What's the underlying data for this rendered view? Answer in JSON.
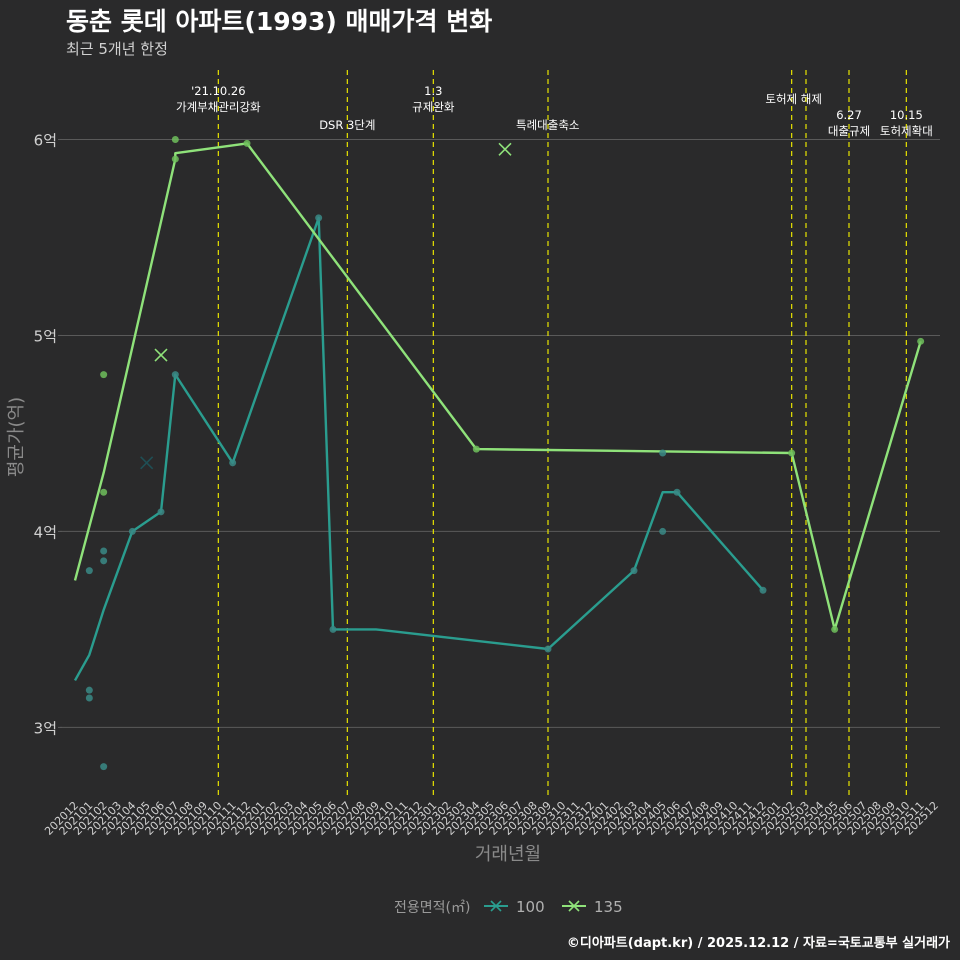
{
  "title": "동춘 롯데 아파트(1993) 매매가격 변화",
  "subtitle": "최근 5개년 한정",
  "caption": "©디아파트(dapt.kr) / 2025.12.12 / 자료=국토교통부 실거래가",
  "colors": {
    "background": "#2a2a2b",
    "grid": "#5a5a5a",
    "series_100": "#2a9d8f",
    "series_100_point": "#3a8a86",
    "series_135": "#8fe27a",
    "series_135_point": "#6fbe5c",
    "event_line": "#e8e400",
    "axis_text": "#d0d0d0"
  },
  "chart_data": {
    "type": "line",
    "xlabel": "거래년월",
    "ylabel": "평균가(억)",
    "ylim": [
      2.65,
      6.38
    ],
    "yticks": [
      3,
      4,
      5,
      6
    ],
    "ytick_labels": [
      "3억",
      "4억",
      "5억",
      "6억"
    ],
    "categories": [
      "202012",
      "202101",
      "202102",
      "202103",
      "202104",
      "202105",
      "202106",
      "202107",
      "202108",
      "202109",
      "202110",
      "202111",
      "202112",
      "202201",
      "202202",
      "202203",
      "202204",
      "202205",
      "202206",
      "202207",
      "202208",
      "202209",
      "202210",
      "202211",
      "202212",
      "202301",
      "202302",
      "202303",
      "202304",
      "202305",
      "202306",
      "202307",
      "202308",
      "202309",
      "202310",
      "202311",
      "202312",
      "202401",
      "202402",
      "202403",
      "202404",
      "202405",
      "202406",
      "202407",
      "202408",
      "202409",
      "202410",
      "202411",
      "202412",
      "202501",
      "202502",
      "202503",
      "202504",
      "202505",
      "202506",
      "202507",
      "202508",
      "202509",
      "202510",
      "202511",
      "202512"
    ],
    "legend": {
      "title": "전용면적(㎡)",
      "position": "bottom",
      "entries": [
        "100",
        "135"
      ]
    },
    "series": [
      {
        "name": "100",
        "line": [
          [
            "202012",
            3.24
          ],
          [
            "202101",
            3.37
          ],
          [
            "202102",
            3.6
          ],
          [
            "202104",
            4.0
          ],
          [
            "202106",
            4.1
          ],
          [
            "202107",
            4.8
          ],
          [
            "202111",
            4.35
          ],
          [
            "202205",
            5.6
          ],
          [
            "202206",
            3.5
          ],
          [
            "202209",
            3.5
          ],
          [
            "202309",
            3.4
          ],
          [
            "202403",
            3.8
          ],
          [
            "202405",
            4.2
          ],
          [
            "202406",
            4.2
          ],
          [
            "202412",
            3.7
          ]
        ],
        "points": [
          [
            "202101",
            3.19
          ],
          [
            "202101",
            3.15
          ],
          [
            "202101",
            3.8
          ],
          [
            "202102",
            3.85
          ],
          [
            "202102",
            2.8
          ],
          [
            "202102",
            3.9
          ],
          [
            "202104",
            4.0
          ],
          [
            "202106",
            4.1
          ],
          [
            "202107",
            4.8
          ],
          [
            "202111",
            4.35
          ],
          [
            "202205",
            5.6
          ],
          [
            "202206",
            3.5
          ],
          [
            "202309",
            3.4
          ],
          [
            "202403",
            3.8
          ],
          [
            "202405",
            4.0
          ],
          [
            "202405",
            4.4
          ],
          [
            "202406",
            4.2
          ],
          [
            "202412",
            3.7
          ]
        ],
        "x_marks": [
          [
            "202105",
            4.35
          ]
        ]
      },
      {
        "name": "135",
        "line": [
          [
            "202012",
            3.75
          ],
          [
            "202102",
            4.3
          ],
          [
            "202107",
            5.9
          ],
          [
            "202107",
            5.93
          ],
          [
            "202112",
            5.98
          ],
          [
            "202304",
            4.42
          ],
          [
            "202502",
            4.4
          ],
          [
            "202505",
            3.5
          ],
          [
            "202511",
            4.97
          ]
        ],
        "points": [
          [
            "202102",
            4.8
          ],
          [
            "202102",
            4.2
          ],
          [
            "202107",
            6.0
          ],
          [
            "202107",
            5.9
          ],
          [
            "202112",
            5.98
          ],
          [
            "202304",
            4.42
          ],
          [
            "202502",
            4.4
          ],
          [
            "202505",
            3.5
          ],
          [
            "202511",
            4.97
          ]
        ],
        "x_marks": [
          [
            "202106",
            4.9
          ],
          [
            "202306",
            5.95
          ]
        ]
      }
    ],
    "events": [
      {
        "x": "202110",
        "offset": 0.0,
        "lines": [
          "'21.10.26",
          "가계부채관리강화"
        ],
        "level": 2
      },
      {
        "x": "202207",
        "offset": 0.0,
        "lines": [
          "DSR 3단계"
        ],
        "level": 0
      },
      {
        "x": "202301",
        "offset": 0.0,
        "lines": [
          "1.3",
          "규제완화"
        ],
        "level": 2
      },
      {
        "x": "202309",
        "offset": 0.0,
        "lines": [
          "특례대출축소"
        ],
        "level": 0,
        "side": "left"
      },
      {
        "x": "202502",
        "offset": 0.0,
        "lines": [
          "토허제 해제"
        ],
        "level": 1,
        "side": "right"
      },
      {
        "x": "202503",
        "offset": 0.0,
        "lines": [],
        "level": 0
      },
      {
        "x": "202506",
        "offset": 0.0,
        "lines": [
          "6.27",
          "대출규제"
        ],
        "level": 0
      },
      {
        "x": "202510",
        "offset": 0.0,
        "lines": [
          "10.15",
          "토허제확대"
        ],
        "level": 0
      }
    ]
  }
}
